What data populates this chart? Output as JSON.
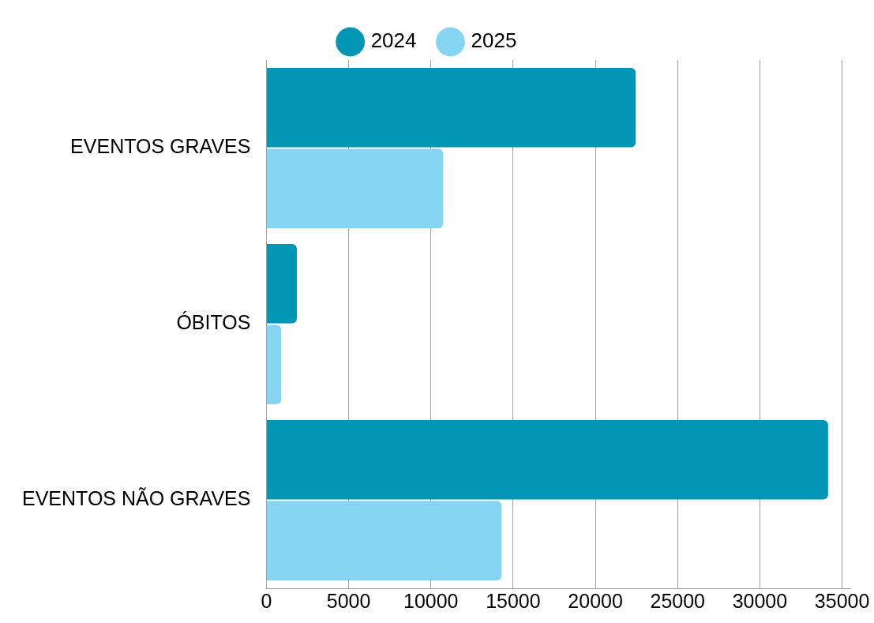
{
  "chart_data": {
    "type": "bar",
    "orientation": "horizontal",
    "categories": [
      "EVENTOS GRAVES",
      "ÓBITOS",
      "EVENTOS NÃO GRAVES"
    ],
    "series": [
      {
        "name": "2024",
        "color": "#0096b4",
        "values": [
          22450,
          1850,
          34150
        ]
      },
      {
        "name": "2025",
        "color": "#85d4f1",
        "values": [
          10750,
          900,
          14300
        ]
      }
    ],
    "xlim": [
      0,
      35500
    ],
    "xticks": [
      0,
      5000,
      10000,
      15000,
      20000,
      25000,
      30000,
      35000
    ],
    "grid": "x",
    "legend": "top"
  }
}
